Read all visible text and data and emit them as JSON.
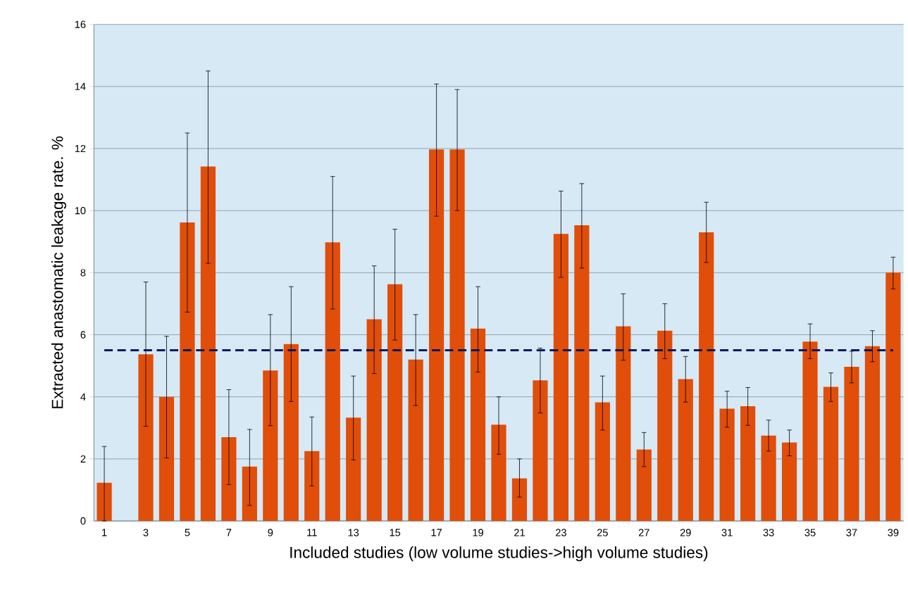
{
  "chart_data": {
    "type": "bar",
    "xlabel": "Included studies (low volume studies->high volume studies)",
    "ylabel": "Extracted anastomatic leakage rate. %",
    "categories": [
      "1",
      null,
      "3",
      null,
      "5",
      null,
      "7",
      null,
      "9",
      null,
      "11",
      null,
      "13",
      null,
      "15",
      null,
      "17",
      null,
      "19",
      null,
      "21",
      null,
      "23",
      null,
      "25",
      null,
      "27",
      null,
      "29",
      null,
      "31",
      null,
      "33",
      null,
      "35",
      null,
      "37",
      null,
      "39"
    ],
    "series": [
      {
        "color": "#e04e0a",
        "values": [
          1.23,
          null,
          5.37,
          4.0,
          9.62,
          11.42,
          2.7,
          1.75,
          4.85,
          5.7,
          2.25,
          8.98,
          3.33,
          6.5,
          7.63,
          5.2,
          11.97,
          11.97,
          6.2,
          3.1,
          1.37,
          4.53,
          9.25,
          9.53,
          3.82,
          6.27,
          2.3,
          6.13,
          4.57,
          9.3,
          3.62,
          3.7,
          2.75,
          2.53,
          5.78,
          4.32,
          4.97,
          5.63,
          8.0
        ],
        "errors": [
          [
            0,
            2.4
          ],
          null,
          [
            3.05,
            7.7
          ],
          [
            2.03,
            5.95
          ],
          [
            6.73,
            12.5
          ],
          [
            8.3,
            14.5
          ],
          [
            1.17,
            4.23
          ],
          [
            0.5,
            2.95
          ],
          [
            3.07,
            6.65
          ],
          [
            3.85,
            7.55
          ],
          [
            1.13,
            3.35
          ],
          [
            6.83,
            11.1
          ],
          [
            1.97,
            4.67
          ],
          [
            4.75,
            8.22
          ],
          [
            5.83,
            9.4
          ],
          [
            3.72,
            6.65
          ],
          [
            9.82,
            14.08
          ],
          [
            10.0,
            13.9
          ],
          [
            4.8,
            7.55
          ],
          [
            2.15,
            4.0
          ],
          [
            0.77,
            2.0
          ],
          [
            3.48,
            5.57
          ],
          [
            7.85,
            10.63
          ],
          [
            8.15,
            10.87
          ],
          [
            2.93,
            4.67
          ],
          [
            5.18,
            7.32
          ],
          [
            1.75,
            2.85
          ],
          [
            5.23,
            7.0
          ],
          [
            3.83,
            5.3
          ],
          [
            8.33,
            10.27
          ],
          [
            3.02,
            4.18
          ],
          [
            3.08,
            4.3
          ],
          [
            2.25,
            3.25
          ],
          [
            2.1,
            2.93
          ],
          [
            5.23,
            6.35
          ],
          [
            3.85,
            4.77
          ],
          [
            4.45,
            5.47
          ],
          [
            5.13,
            6.13
          ],
          [
            7.48,
            8.5
          ]
        ]
      }
    ],
    "ylim": [
      0,
      16
    ],
    "yticks": [
      0,
      2,
      4,
      6,
      8,
      10,
      12,
      14,
      16
    ],
    "grid": "y",
    "ref_lines": [
      {
        "axis": "y",
        "value": 5.5,
        "color": "#0c1a5e",
        "line_style": "dashed"
      }
    ]
  }
}
